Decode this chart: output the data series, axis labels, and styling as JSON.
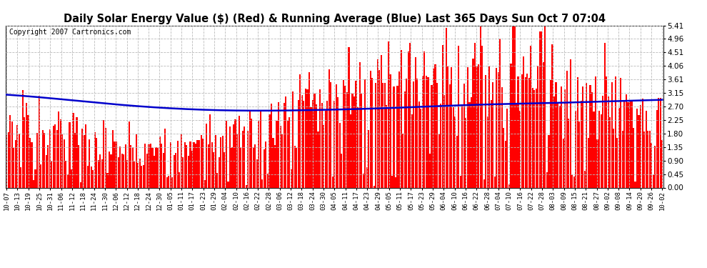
{
  "title": "Daily Solar Energy Value ($) (Red) & Running Average (Blue) Last 365 Days Sun Oct 7 07:04",
  "copyright_text": "Copyright 2007 Cartronics.com",
  "yticks": [
    0.0,
    0.45,
    0.9,
    1.35,
    1.8,
    2.25,
    2.7,
    3.15,
    3.61,
    4.06,
    4.51,
    4.96,
    5.41
  ],
  "ylim": [
    0.0,
    5.41
  ],
  "bar_color": "#FF0000",
  "avg_color": "#0000CC",
  "bg_color": "#FFFFFF",
  "plot_bg_color": "#FFFFFF",
  "grid_color": "#BBBBBB",
  "title_fontsize": 10.5,
  "copyright_fontsize": 7,
  "xtick_labels": [
    "10-07",
    "10-13",
    "10-19",
    "10-25",
    "10-31",
    "11-06",
    "11-12",
    "11-18",
    "11-24",
    "11-30",
    "12-06",
    "12-12",
    "12-18",
    "12-24",
    "12-30",
    "01-05",
    "01-11",
    "01-17",
    "01-23",
    "01-29",
    "02-04",
    "02-10",
    "02-16",
    "02-22",
    "02-28",
    "03-06",
    "03-12",
    "03-18",
    "03-24",
    "03-30",
    "04-05",
    "04-11",
    "04-17",
    "04-23",
    "04-29",
    "05-05",
    "05-11",
    "05-17",
    "05-23",
    "05-29",
    "06-04",
    "06-10",
    "06-16",
    "06-22",
    "06-28",
    "07-04",
    "07-10",
    "07-16",
    "07-22",
    "07-28",
    "08-03",
    "08-09",
    "08-15",
    "08-21",
    "08-27",
    "09-02",
    "09-08",
    "09-14",
    "09-20",
    "09-26",
    "10-02"
  ],
  "avg_control_points_x": [
    0,
    30,
    60,
    90,
    120,
    150,
    180,
    210,
    240,
    270,
    300,
    330,
    364
  ],
  "avg_control_points_y": [
    3.1,
    2.95,
    2.78,
    2.65,
    2.58,
    2.57,
    2.6,
    2.65,
    2.72,
    2.78,
    2.82,
    2.87,
    2.93
  ]
}
